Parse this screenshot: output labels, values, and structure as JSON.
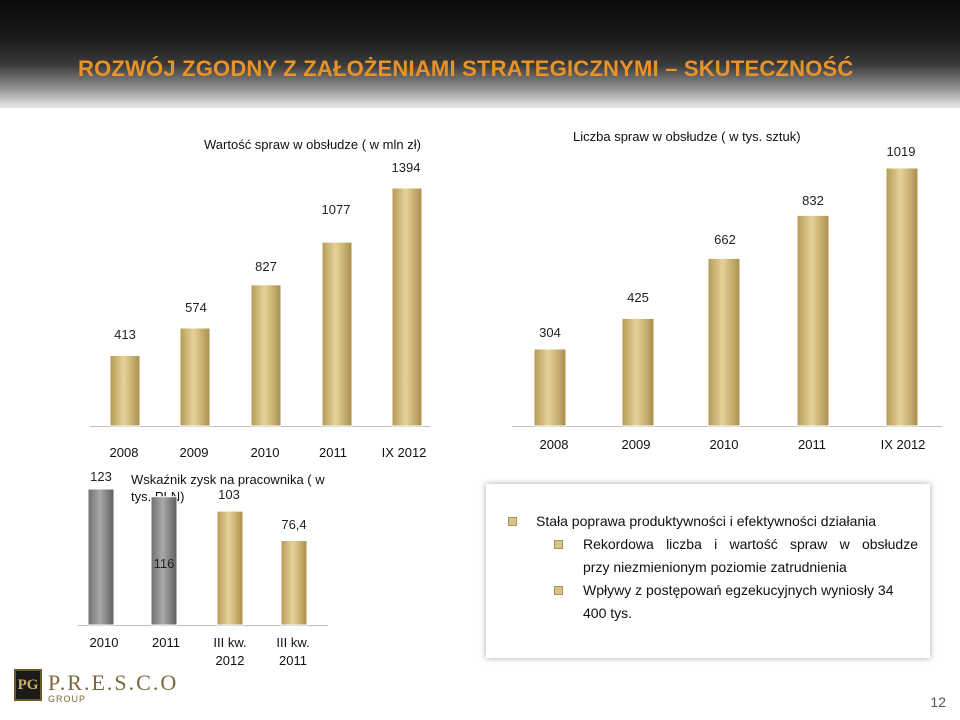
{
  "slide": {
    "title": "ROZWÓJ ZGODNY Z ZAŁOŻENIAMI STRATEGICZNYMI – SKUTECZNOŚĆ",
    "page_number": "12",
    "logo": {
      "mark": "PG",
      "name": "P.R.E.S.C.O",
      "sub": "GROUP"
    }
  },
  "charts": {
    "value": {
      "title": "Wartość spraw w obsłudze ( w mln zł)",
      "categories": [
        "2008",
        "2009",
        "2010",
        "2011",
        "IX 2012"
      ],
      "labels": [
        "413",
        "574",
        "827",
        "1077",
        "1394"
      ]
    },
    "count": {
      "title": "Liczba spraw w obsłudze ( w tys. sztuk)",
      "categories": [
        "2008",
        "2009",
        "2010",
        "2011",
        "IX 2012"
      ],
      "labels": [
        "304",
        "425",
        "662",
        "832",
        "1019"
      ]
    },
    "profit": {
      "title_line1": "Wskaźnik zysk na pracownika ( w",
      "title_line2": "tys. PLN)",
      "categories": [
        "2010",
        "2011",
        "III kw. 2012",
        "III kw. 2011"
      ],
      "cat_lines": [
        [
          "2010",
          ""
        ],
        [
          "2011",
          ""
        ],
        [
          "III kw.",
          "2012"
        ],
        [
          "III kw.",
          "2011"
        ]
      ],
      "labels": [
        "123",
        "116",
        "103",
        "76,4"
      ]
    }
  },
  "chart_data": [
    {
      "type": "bar",
      "title": "Wartość spraw w obsłudze ( w mln zł)",
      "categories": [
        "2008",
        "2009",
        "2010",
        "2011",
        "IX 2012"
      ],
      "values": [
        413,
        574,
        827,
        1077,
        1394
      ],
      "ylim": [
        0,
        1450
      ],
      "grid": false,
      "colors": {
        "bar": "#d4bd7a"
      }
    },
    {
      "type": "bar",
      "title": "Liczba spraw w obsłudze ( w tys. sztuk)",
      "categories": [
        "2008",
        "2009",
        "2010",
        "2011",
        "IX 2012"
      ],
      "values": [
        304,
        425,
        662,
        832,
        1019
      ],
      "ylim": [
        0,
        1060
      ],
      "grid": false,
      "colors": {
        "bar": "#d4bd7a"
      }
    },
    {
      "type": "bar",
      "title": "Wskaźnik zysk na pracownika ( w tys. PLN)",
      "categories": [
        "2010",
        "2011",
        "III kw. 2012",
        "III kw. 2011"
      ],
      "values": [
        123,
        116,
        103,
        76.4
      ],
      "ylim": [
        0,
        200
      ],
      "grid": false,
      "colors": {
        "bars": [
          "#8a8a8a",
          "#8a8a8a",
          "#d4bd7a",
          "#d4bd7a"
        ]
      }
    }
  ],
  "textbox": {
    "heading": "Stała poprawa produktywności i efektywności działania",
    "items": [
      {
        "line1": "Rekordowa liczba i wartość spraw w obsłudze",
        "line2": "przy niezmienionym poziomie zatrudnienia"
      },
      {
        "line1": "Wpływy z postępowań egzekucyjnych wyniosły 34",
        "line2": "400 tys."
      }
    ]
  },
  "theme": {
    "title_color": "#e8922a",
    "gold_bar": "#d4bd7a",
    "gray_bar": "#8a8a8a",
    "bullet_color": "#d8c38a"
  }
}
